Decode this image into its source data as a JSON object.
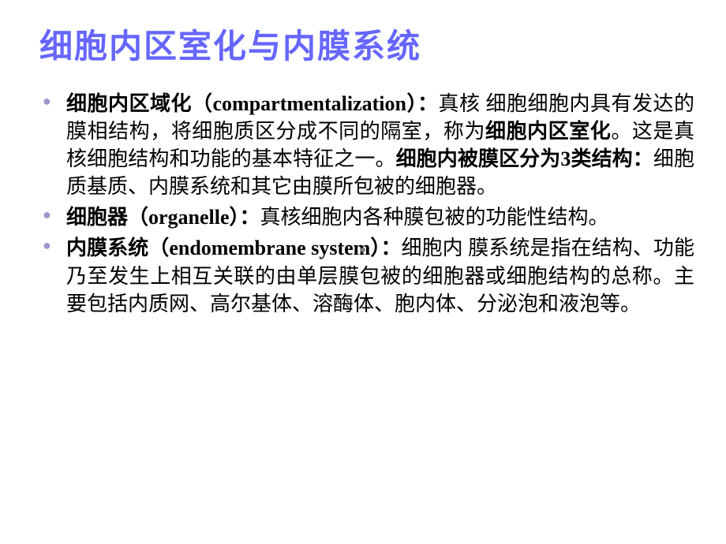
{
  "colors": {
    "title_color": "#6666ff",
    "bullet_color": "#9999cc",
    "text_color": "#000000",
    "background": "#ffffff"
  },
  "title": "细胞内区室化与内膜系统",
  "bullets": [
    {
      "segments": [
        {
          "text": "细胞内区域化（compartmentalization）：",
          "bold": true
        },
        {
          "text": "真核 细胞细胞内具有发达的膜相结构，将细胞质区分成不同的隔室，称为",
          "bold": false
        },
        {
          "text": "细胞内区室化",
          "bold": true
        },
        {
          "text": "。这是真核细胞结构和功能的基本特征之一。",
          "bold": false
        },
        {
          "text": "细胞内被膜区分为3类结构：",
          "bold": true
        },
        {
          "text": "细胞质基质、内膜系统和其它由膜所包被的细胞器。",
          "bold": false
        }
      ]
    },
    {
      "segments": [
        {
          "text": "细胞器（organelle）：",
          "bold": true
        },
        {
          "text": "真核细胞内各种膜包被的功能性结构。",
          "bold": false
        }
      ]
    },
    {
      "segments": [
        {
          "text": "内膜系统（endomembrane system）：",
          "bold": true
        },
        {
          "text": "细胞内 膜系统是指在结构、功能乃至发生上相互关联的由单层膜包被的细胞器或细胞结构的总称。主要包括内质网、高尔基体、溶酶体、胞内体、分泌泡和液泡等。",
          "bold": false
        }
      ]
    }
  ]
}
